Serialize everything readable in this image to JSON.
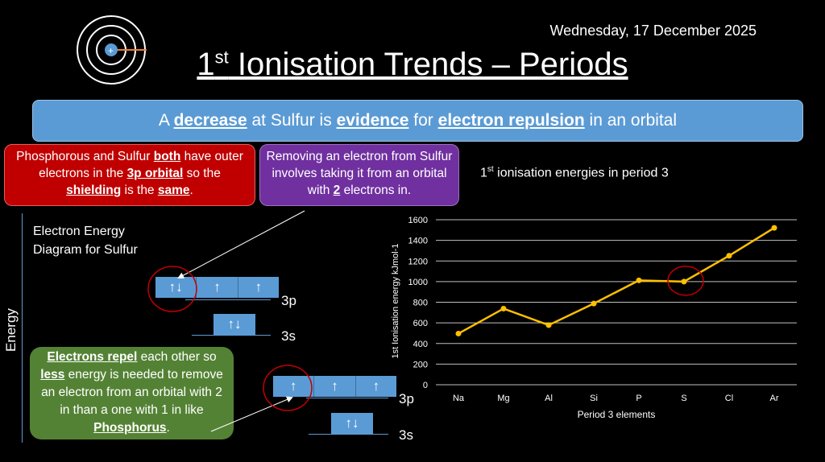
{
  "date": "Wednesday, 17 December 2025",
  "title": {
    "main": "1",
    "sup": "st",
    "rest": " Ionisation Trends – Periods"
  },
  "banner": {
    "t1": "A ",
    "b1": "decrease",
    "t2": " at Sulfur is ",
    "b2": "evidence",
    "t3": " for ",
    "b3": "electron repulsion",
    "t4": " in an orbital"
  },
  "red_box": {
    "t1": "Phosphorous and Sulfur ",
    "b1": "both",
    "t2": " have outer electrons in the ",
    "b2": "3p orbital",
    "t3": " so the ",
    "b3": "shielding",
    "t4": " is the ",
    "b4": "same",
    "t5": "."
  },
  "purple_box": {
    "t1": "Removing an electron from Sulfur involves taking it from an orbital with ",
    "b1": "2",
    "t2": " electrons in."
  },
  "green_box": {
    "b1": "Electrons repel",
    "t1": " each other so ",
    "b2": "less",
    "t2": " energy is needed to remove an electron from an orbital with 2 in than a one with 1 in like ",
    "b3": "Phosphorus",
    "t3": "."
  },
  "diagram": {
    "axis_label": "Energy",
    "title": "Electron Energy Diagram for Sulfur",
    "sulfur": {
      "p": [
        "↑↓",
        "↑",
        "↑"
      ],
      "s": [
        "↑↓"
      ]
    },
    "phosphorus": {
      "p": [
        "↑",
        "↑",
        "↑"
      ],
      "s": [
        "↑↓"
      ]
    },
    "label_3p": "3p",
    "label_3s": "3s"
  },
  "chart_heading": {
    "main": "1",
    "sup": "st",
    "rest": " ionisation energies in period 3"
  },
  "chart_data": {
    "type": "line",
    "categories": [
      "Na",
      "Mg",
      "Al",
      "Si",
      "P",
      "S",
      "Cl",
      "Ar"
    ],
    "values": [
      496,
      738,
      578,
      787,
      1012,
      1000,
      1251,
      1521
    ],
    "xlabel": "Period 3 elements",
    "ylabel": "1st Ionisation energy kJmol-1",
    "ylim": [
      0,
      1600
    ],
    "yticks": [
      0,
      200,
      400,
      600,
      800,
      1000,
      1200,
      1400,
      1600
    ],
    "grid": true,
    "line_color": "#ffc000",
    "highlight": "S",
    "highlight_color": "#c00000"
  }
}
